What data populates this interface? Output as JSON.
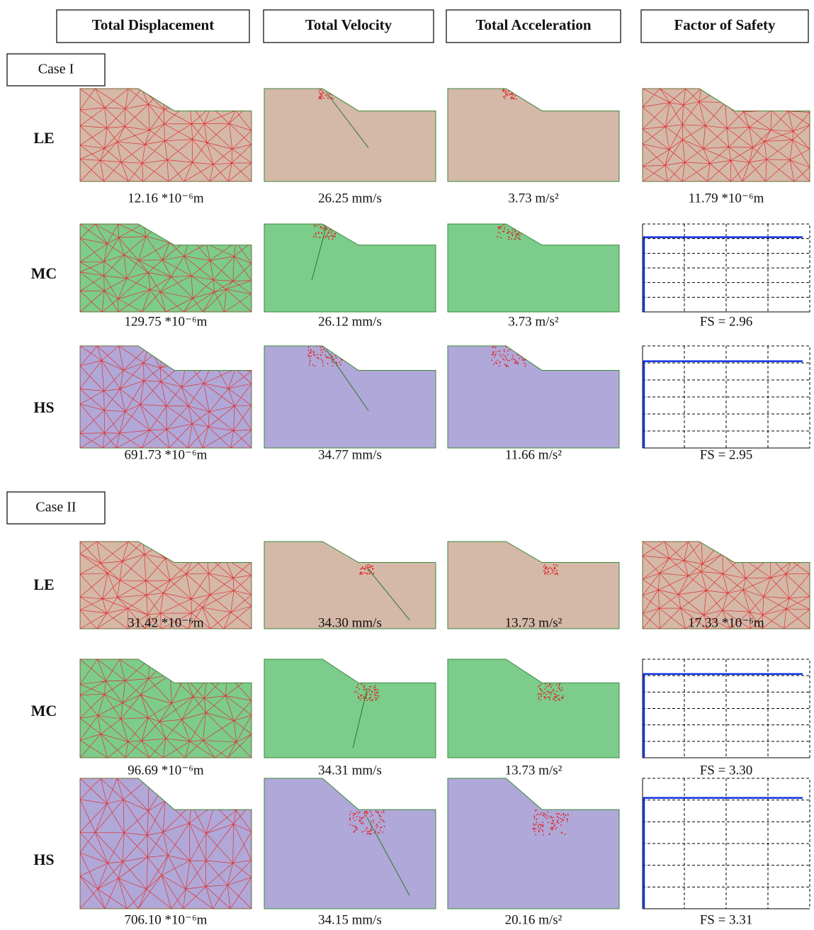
{
  "column_headers": [
    "Total Displacement",
    "Total Velocity",
    "Total Acceleration",
    "Factor of Safety"
  ],
  "cases": [
    {
      "label": "Case I",
      "rows": [
        {
          "label": "LE",
          "captions": [
            "12.16 *10⁻⁶m",
            "26.25 mm/s",
            "3.73 m/s²",
            "11.79 *10⁻⁶m"
          ]
        },
        {
          "label": "MC",
          "captions": [
            "129.75 *10⁻⁶m",
            "26.12 mm/s",
            "3.73 m/s²",
            "FS = 2.96"
          ]
        },
        {
          "label": "HS",
          "captions": [
            "691.73 *10⁻⁶m",
            "34.77 mm/s",
            "11.66 m/s²",
            "FS = 2.95"
          ]
        }
      ]
    },
    {
      "label": "Case II",
      "rows": [
        {
          "label": "LE",
          "captions": [
            "31.42 *10⁻⁶m",
            "34.30 mm/s",
            "13.73 m/s²",
            "17.33 *10⁻⁶m"
          ]
        },
        {
          "label": "MC",
          "captions": [
            "96.69 *10⁻⁶m",
            "34.31 mm/s",
            "13.73 m/s²",
            "FS = 3.30"
          ]
        },
        {
          "label": "HS",
          "captions": [
            "706.10 *10⁻⁶m",
            "34.15 mm/s",
            "20.16 m/s²",
            "FS = 3.31"
          ]
        }
      ]
    }
  ]
}
